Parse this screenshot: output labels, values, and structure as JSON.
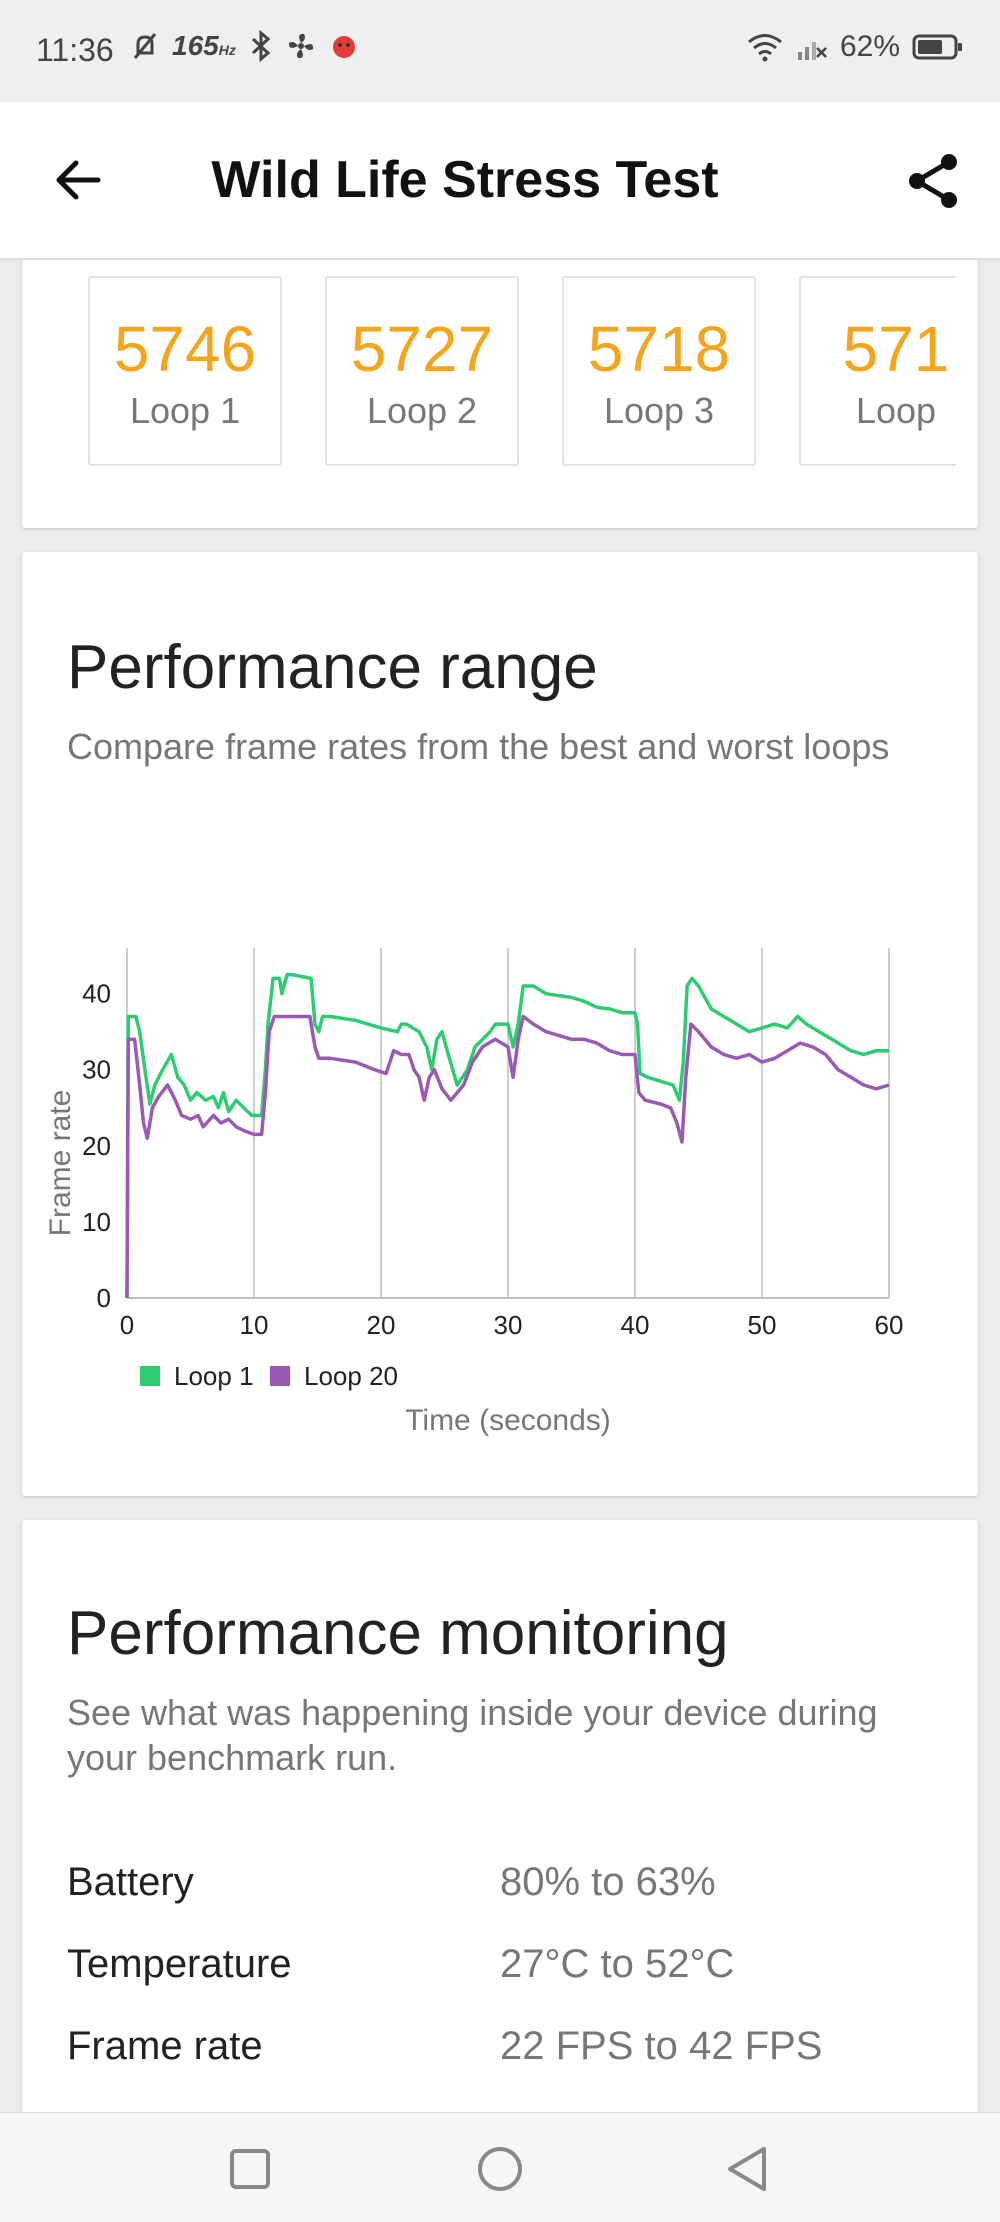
{
  "status_bar": {
    "time": "11:36",
    "refresh_rate": "165",
    "refresh_unit": "Hz",
    "battery_pct": "62%"
  },
  "app_bar": {
    "title": "Wild Life Stress Test",
    "back_icon": "arrow-left-icon",
    "share_icon": "share-icon"
  },
  "loops": [
    {
      "score": "5746",
      "label": "Loop 1"
    },
    {
      "score": "5727",
      "label": "Loop 2"
    },
    {
      "score": "5718",
      "label": "Loop 3"
    },
    {
      "score": "571",
      "label": "Loop"
    }
  ],
  "performance_range": {
    "title": "Performance range",
    "subtitle": "Compare frame rates from the best and worst loops"
  },
  "chart_data": {
    "type": "line",
    "xlabel": "Time (seconds)",
    "ylabel": "Frame rate",
    "xlim": [
      0,
      60
    ],
    "ylim": [
      0,
      46
    ],
    "xticks": [
      0,
      10,
      20,
      30,
      40,
      50,
      60
    ],
    "yticks": [
      0,
      10,
      20,
      30,
      40
    ],
    "grid": "vertical",
    "legend_position": "bottom-left",
    "series": [
      {
        "name": "Loop 1",
        "color": "#2ecc71",
        "points": [
          [
            0,
            0
          ],
          [
            0.1,
            37
          ],
          [
            0.7,
            37
          ],
          [
            1,
            35
          ],
          [
            1.5,
            29
          ],
          [
            1.8,
            25.5
          ],
          [
            2.2,
            28
          ],
          [
            2.8,
            30
          ],
          [
            3.5,
            32
          ],
          [
            4,
            29
          ],
          [
            4.5,
            28
          ],
          [
            5,
            26
          ],
          [
            5.5,
            27
          ],
          [
            6.2,
            26
          ],
          [
            6.8,
            26.5
          ],
          [
            7.2,
            25
          ],
          [
            7.6,
            27
          ],
          [
            8,
            24.5
          ],
          [
            8.6,
            26
          ],
          [
            9.2,
            25
          ],
          [
            9.8,
            24
          ],
          [
            10.6,
            24
          ],
          [
            10.9,
            30
          ],
          [
            11.1,
            36
          ],
          [
            11.5,
            42
          ],
          [
            12,
            42
          ],
          [
            12.2,
            40
          ],
          [
            12.6,
            42.5
          ],
          [
            13,
            42.5
          ],
          [
            14.5,
            42
          ],
          [
            14.8,
            36
          ],
          [
            15.1,
            35
          ],
          [
            15.4,
            37
          ],
          [
            16,
            37
          ],
          [
            18,
            36.5
          ],
          [
            20,
            35.5
          ],
          [
            21.3,
            35
          ],
          [
            21.6,
            36
          ],
          [
            22,
            36
          ],
          [
            23,
            35
          ],
          [
            23.6,
            33
          ],
          [
            24,
            30
          ],
          [
            24.4,
            34
          ],
          [
            24.8,
            35
          ],
          [
            25.3,
            32
          ],
          [
            26,
            28
          ],
          [
            26.8,
            30
          ],
          [
            27.4,
            33
          ],
          [
            28,
            34
          ],
          [
            28.6,
            35
          ],
          [
            29,
            36
          ],
          [
            30,
            36
          ],
          [
            30.4,
            33
          ],
          [
            30.8,
            36
          ],
          [
            31.2,
            41
          ],
          [
            32,
            41
          ],
          [
            33,
            40
          ],
          [
            35,
            39.5
          ],
          [
            36,
            39
          ],
          [
            37,
            38.2
          ],
          [
            38,
            38
          ],
          [
            39,
            37.5
          ],
          [
            40,
            37.5
          ],
          [
            40.2,
            36
          ],
          [
            40.4,
            29.5
          ],
          [
            41,
            29
          ],
          [
            42,
            28.5
          ],
          [
            43,
            28
          ],
          [
            43.5,
            26
          ],
          [
            43.8,
            31
          ],
          [
            44.1,
            41
          ],
          [
            44.5,
            42
          ],
          [
            45,
            41
          ],
          [
            46,
            38
          ],
          [
            47,
            37
          ],
          [
            48,
            36
          ],
          [
            49,
            35
          ],
          [
            50,
            35.5
          ],
          [
            51,
            36
          ],
          [
            52,
            35.5
          ],
          [
            52.8,
            37
          ],
          [
            53.5,
            36
          ],
          [
            54.5,
            35
          ],
          [
            55,
            34.5
          ],
          [
            55.5,
            34
          ],
          [
            56,
            33.5
          ],
          [
            57,
            32.5
          ],
          [
            58,
            32
          ],
          [
            59,
            32.5
          ],
          [
            60,
            32.5
          ]
        ]
      },
      {
        "name": "Loop 20",
        "color": "#9b59b6",
        "points": [
          [
            0,
            0
          ],
          [
            0.1,
            34
          ],
          [
            0.6,
            34
          ],
          [
            1,
            28
          ],
          [
            1.3,
            23
          ],
          [
            1.6,
            21
          ],
          [
            2,
            25
          ],
          [
            2.5,
            26.5
          ],
          [
            3.2,
            28
          ],
          [
            3.8,
            26
          ],
          [
            4.3,
            24
          ],
          [
            5,
            23.5
          ],
          [
            5.6,
            24
          ],
          [
            6,
            22.5
          ],
          [
            6.8,
            24
          ],
          [
            7.4,
            23
          ],
          [
            8,
            23.5
          ],
          [
            8.6,
            22.5
          ],
          [
            9.2,
            22
          ],
          [
            10,
            21.5
          ],
          [
            10.6,
            21.5
          ],
          [
            10.9,
            27
          ],
          [
            11.2,
            35
          ],
          [
            11.6,
            37
          ],
          [
            13,
            37
          ],
          [
            14.4,
            37
          ],
          [
            14.8,
            33
          ],
          [
            15.1,
            31.5
          ],
          [
            16,
            31.5
          ],
          [
            18,
            31
          ],
          [
            19.5,
            30
          ],
          [
            20.4,
            29.5
          ],
          [
            21,
            32.5
          ],
          [
            21.6,
            32
          ],
          [
            22.2,
            32
          ],
          [
            22.6,
            30
          ],
          [
            23,
            29
          ],
          [
            23.4,
            26
          ],
          [
            23.8,
            29
          ],
          [
            24.2,
            30
          ],
          [
            24.8,
            27.5
          ],
          [
            25.5,
            26
          ],
          [
            26.5,
            28
          ],
          [
            27.2,
            31
          ],
          [
            28,
            33
          ],
          [
            29,
            34
          ],
          [
            30,
            33
          ],
          [
            30.4,
            29
          ],
          [
            30.8,
            34
          ],
          [
            31.2,
            37
          ],
          [
            32,
            36
          ],
          [
            33,
            35
          ],
          [
            34,
            34.5
          ],
          [
            35,
            34
          ],
          [
            36,
            34
          ],
          [
            37,
            33.5
          ],
          [
            38,
            32.5
          ],
          [
            39,
            32
          ],
          [
            40,
            32
          ],
          [
            40.3,
            27
          ],
          [
            40.8,
            26
          ],
          [
            42,
            25.5
          ],
          [
            42.8,
            25
          ],
          [
            43.3,
            23
          ],
          [
            43.7,
            20.5
          ],
          [
            44,
            29
          ],
          [
            44.4,
            36
          ],
          [
            45,
            35
          ],
          [
            46,
            33
          ],
          [
            47,
            32
          ],
          [
            48,
            31.5
          ],
          [
            49,
            32
          ],
          [
            50,
            31
          ],
          [
            51,
            31.5
          ],
          [
            52,
            32.5
          ],
          [
            53,
            33.5
          ],
          [
            54,
            33
          ],
          [
            55,
            32
          ],
          [
            56,
            30
          ],
          [
            57,
            29
          ],
          [
            58,
            28
          ],
          [
            59,
            27.5
          ],
          [
            60,
            28
          ]
        ]
      }
    ]
  },
  "performance_monitoring": {
    "title": "Performance monitoring",
    "subtitle": "See what was happening inside your device during your benchmark run.",
    "rows": [
      {
        "label": "Battery",
        "value": "80% to 63%"
      },
      {
        "label": "Temperature",
        "value": "27°C to 52°C"
      },
      {
        "label": "Frame rate",
        "value": "22 FPS to 42 FPS"
      }
    ]
  },
  "nav_bar": {
    "recents_icon": "square-icon",
    "home_icon": "circle-icon",
    "back_icon": "triangle-back-icon"
  }
}
